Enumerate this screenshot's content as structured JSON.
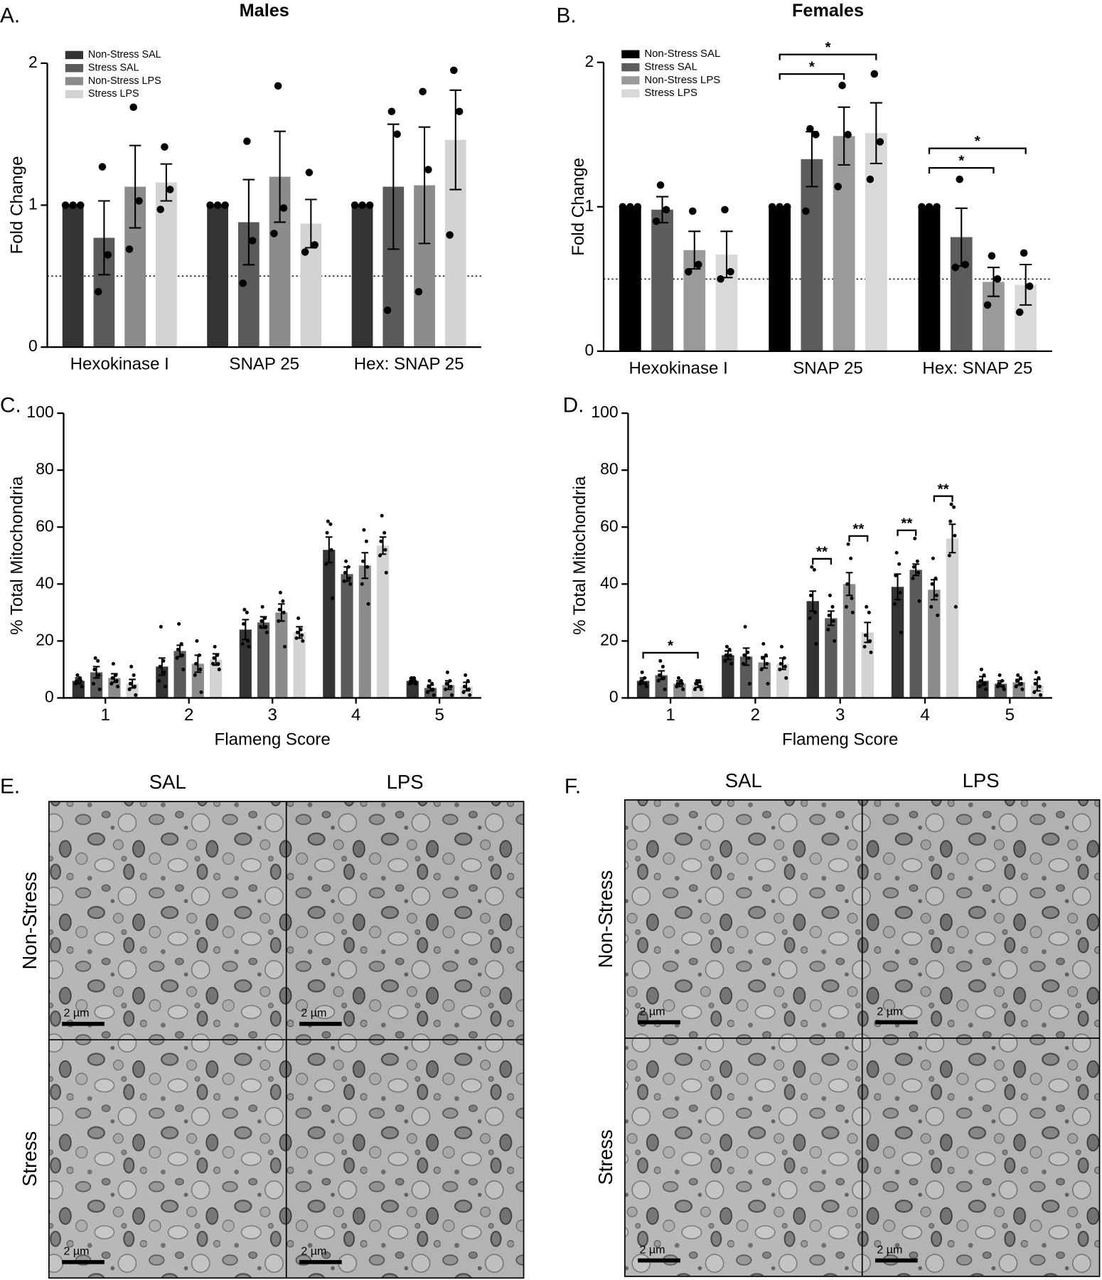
{
  "chart_data": [
    {
      "type": "bar",
      "panel_label": "A.",
      "title": "Males",
      "ylabel": "Fold  Change",
      "categories": [
        "Hexokinase I",
        "SNAP 25",
        "Hex: SNAP 25"
      ],
      "ylim": [
        0,
        2
      ],
      "yticks": [
        0,
        1,
        2
      ],
      "reference_line": 0.5,
      "legend": "upper left",
      "series": [
        {
          "name": "Non-Stress SAL",
          "color": "#333333",
          "values": [
            1,
            1,
            1
          ],
          "errors": [
            0,
            0,
            0
          ],
          "points": [
            [
              1,
              1,
              1
            ],
            [
              1,
              1,
              1
            ],
            [
              1,
              1,
              1
            ]
          ]
        },
        {
          "name": "Stress SAL",
          "color": "#5a5a5a",
          "values": [
            0.77,
            0.88,
            1.13
          ],
          "errors": [
            0.26,
            0.3,
            0.44
          ],
          "points": [
            [
              1.27,
              0.65,
              0.39
            ],
            [
              1.45,
              0.75,
              0.45
            ],
            [
              1.66,
              1.5,
              0.26
            ]
          ]
        },
        {
          "name": "Non-Stress LPS",
          "color": "#8c8c8c",
          "values": [
            1.13,
            1.2,
            1.14
          ],
          "errors": [
            0.29,
            0.32,
            0.41
          ],
          "points": [
            [
              1.69,
              1.03,
              0.69
            ],
            [
              1.84,
              0.98,
              0.8
            ],
            [
              1.8,
              1.25,
              0.39
            ]
          ]
        },
        {
          "name": "Stress LPS",
          "color": "#d3d3d3",
          "values": [
            1.16,
            0.87,
            1.46
          ],
          "errors": [
            0.13,
            0.17,
            0.35
          ],
          "points": [
            [
              1.41,
              1.11,
              0.97
            ],
            [
              1.23,
              0.72,
              0.67
            ],
            [
              1.95,
              1.66,
              0.79
            ]
          ]
        }
      ]
    },
    {
      "type": "bar",
      "panel_label": "B.",
      "title": "Females",
      "ylabel": "Fold Change",
      "categories": [
        "Hexokinase I",
        "SNAP 25",
        "Hex: SNAP 25"
      ],
      "ylim": [
        0,
        2
      ],
      "yticks": [
        0,
        1,
        2
      ],
      "reference_line": 0.5,
      "legend": "upper left",
      "series": [
        {
          "name": "Non-Stress SAL",
          "color": "#000000",
          "values": [
            1,
            1,
            1
          ],
          "errors": [
            0,
            0,
            0
          ],
          "points": [
            [
              1,
              1,
              1
            ],
            [
              1,
              1,
              1
            ],
            [
              1,
              1,
              1
            ]
          ]
        },
        {
          "name": "Stress SAL",
          "color": "#5c5c5c",
          "values": [
            0.98,
            1.33,
            0.79
          ],
          "errors": [
            0.09,
            0.19,
            0.2
          ],
          "points": [
            [
              1.15,
              0.98,
              0.9
            ],
            [
              1.54,
              1.5,
              0.97
            ],
            [
              1.19,
              0.6,
              0.58
            ]
          ]
        },
        {
          "name": "Non-Stress LPS",
          "color": "#9a9a9a",
          "values": [
            0.7,
            1.49,
            0.48
          ],
          "errors": [
            0.13,
            0.2,
            0.1
          ],
          "points": [
            [
              0.97,
              0.6,
              0.55
            ],
            [
              1.84,
              1.5,
              1.14
            ],
            [
              0.66,
              0.5,
              0.32
            ]
          ]
        },
        {
          "name": "Stress LPS",
          "color": "#d9d9d9",
          "values": [
            0.67,
            1.51,
            0.46
          ],
          "errors": [
            0.16,
            0.21,
            0.14
          ],
          "points": [
            [
              0.98,
              0.55,
              0.5
            ],
            [
              1.92,
              1.45,
              1.19
            ],
            [
              0.68,
              0.45,
              0.27
            ]
          ]
        }
      ],
      "brackets": [
        {
          "text": "*",
          "category": 1,
          "series": [
            0,
            2
          ]
        },
        {
          "text": "*",
          "category": 1,
          "series": [
            0,
            3
          ]
        },
        {
          "text": "*",
          "category": 2,
          "series": [
            0,
            2
          ]
        },
        {
          "text": "*",
          "category": 2,
          "series": [
            0,
            3
          ]
        }
      ]
    },
    {
      "type": "bar",
      "panel_label": "C.",
      "ylabel": "% Total Mitochondria",
      "xlabel": "Flameng Score",
      "categories": [
        "1",
        "2",
        "3",
        "4",
        "5"
      ],
      "ylim": [
        0,
        100
      ],
      "yticks": [
        0,
        20,
        40,
        60,
        80,
        100
      ],
      "series": [
        {
          "color": "#333333",
          "values": [
            6,
            11,
            24,
            52,
            6
          ],
          "errors": [
            1,
            3,
            3.5,
            4.5,
            1
          ],
          "points": [
            [
              8,
              7,
              6,
              6,
              5,
              4
            ],
            [
              25,
              13,
              11,
              9,
              6,
              4
            ],
            [
              31,
              30,
              26,
              20,
              19,
              18
            ],
            [
              62,
              61,
              58,
              52,
              47,
              35
            ],
            [
              7,
              7,
              6,
              6,
              5,
              5
            ]
          ]
        },
        {
          "color": "#5a5a5a",
          "values": [
            9,
            16.5,
            26.5,
            43.5,
            3.5
          ],
          "errors": [
            2,
            2,
            2,
            2.5,
            1
          ],
          "points": [
            [
              14,
              13,
              10,
              8,
              5,
              3
            ],
            [
              26,
              19,
              17,
              15,
              14,
              10
            ],
            [
              32,
              28,
              27,
              25,
              25,
              23
            ],
            [
              48,
              46,
              44,
              42,
              41,
              40
            ],
            [
              6,
              5,
              4,
              3,
              2,
              1
            ]
          ]
        },
        {
          "color": "#8c8c8c",
          "values": [
            7,
            12,
            30,
            46.5,
            4.5
          ],
          "errors": [
            1.5,
            3,
            3,
            4.5,
            1.5
          ],
          "points": [
            [
              12,
              8,
              7,
              6,
              5,
              4
            ],
            [
              20,
              15,
              12,
              10,
              8,
              2
            ],
            [
              37,
              34,
              31,
              30,
              27,
              18
            ],
            [
              59,
              55,
              48,
              46,
              40,
              33
            ],
            [
              9,
              6,
              5,
              4,
              3,
              1
            ]
          ]
        },
        {
          "color": "#d3d3d3",
          "values": [
            5,
            13.5,
            23,
            53.5,
            4
          ],
          "errors": [
            1.5,
            2,
            2,
            3,
            1.5
          ],
          "points": [
            [
              11,
              8,
              5,
              4,
              3,
              1
            ],
            [
              18,
              15,
              14,
              12,
              12,
              10
            ],
            [
              28,
              24,
              23,
              22,
              21,
              20
            ],
            [
              64,
              58,
              55,
              52,
              50,
              44
            ],
            [
              8,
              6,
              4,
              3,
              2,
              1
            ]
          ]
        }
      ]
    },
    {
      "type": "bar",
      "panel_label": "D.",
      "ylabel": "% Total Mitochondria",
      "xlabel": "Flameng Score",
      "categories": [
        "1",
        "2",
        "3",
        "4",
        "5"
      ],
      "ylim": [
        0,
        100
      ],
      "yticks": [
        0,
        20,
        40,
        60,
        80,
        100
      ],
      "series": [
        {
          "color": "#333333",
          "values": [
            6,
            15,
            34,
            39,
            6
          ],
          "errors": [
            1,
            1.5,
            3.5,
            4.5,
            1.5
          ],
          "points": [
            [
              9,
              7,
              6,
              5,
              5,
              4
            ],
            [
              18,
              17,
              15,
              15,
              13,
              12
            ],
            [
              46,
              45,
              36,
              30,
              28,
              19
            ],
            [
              51,
              47,
              43,
              37,
              33,
              23
            ],
            [
              10,
              8,
              6,
              5,
              4,
              3
            ]
          ]
        },
        {
          "color": "#5a5a5a",
          "values": [
            8,
            14.5,
            28,
            45,
            5
          ],
          "errors": [
            1.5,
            3,
            2.5,
            2,
            1
          ],
          "points": [
            [
              13,
              11,
              8,
              7,
              6,
              3
            ],
            [
              25,
              16,
              15,
              14,
              12,
              5
            ],
            [
              36,
              32,
              29,
              27,
              24,
              20
            ],
            [
              56,
              48,
              46,
              44,
              42,
              34
            ],
            [
              8,
              6,
              5,
              4,
              4,
              3
            ]
          ]
        },
        {
          "color": "#8c8c8c",
          "values": [
            5,
            12.5,
            40,
            38,
            5.5
          ],
          "errors": [
            1,
            2,
            4,
            3.5,
            1
          ],
          "points": [
            [
              7,
              6,
              5,
              5,
              4,
              3
            ],
            [
              19,
              15,
              14,
              12,
              10,
              5
            ],
            [
              54,
              49,
              40,
              35,
              32,
              30
            ],
            [
              49,
              42,
              40,
              36,
              32,
              29
            ],
            [
              8,
              7,
              6,
              5,
              4,
              3
            ]
          ]
        },
        {
          "color": "#d3d3d3",
          "values": [
            4.5,
            12,
            23,
            56,
            4.5
          ],
          "errors": [
            0.8,
            2,
            3.5,
            5,
            2
          ],
          "points": [
            [
              6,
              6,
              5,
              4,
              3,
              3
            ],
            [
              18,
              14,
              12,
              11,
              10,
              7
            ],
            [
              32,
              30,
              22,
              20,
              18,
              16
            ],
            [
              68,
              67,
              62,
              57,
              50,
              32
            ],
            [
              9,
              7,
              5,
              4,
              2,
              1
            ]
          ]
        }
      ],
      "brackets": [
        {
          "text": "*",
          "category": 0,
          "series": [
            0,
            3
          ]
        },
        {
          "text": "**",
          "category": 2,
          "series": [
            0,
            1
          ]
        },
        {
          "text": "**",
          "category": 2,
          "series": [
            2,
            3
          ]
        },
        {
          "text": "**",
          "category": 3,
          "series": [
            0,
            1
          ]
        },
        {
          "text": "**",
          "category": 3,
          "series": [
            2,
            3
          ]
        }
      ]
    }
  ],
  "micrographs": [
    {
      "panel_label": "E.",
      "columns": [
        "SAL",
        "LPS"
      ],
      "rows": [
        "Non-Stress",
        "Stress"
      ],
      "scale_bar": "2 µm"
    },
    {
      "panel_label": "F.",
      "columns": [
        "SAL",
        "LPS"
      ],
      "rows": [
        "Non-Stress",
        "Stress"
      ],
      "scale_bar": "2 µm"
    }
  ]
}
